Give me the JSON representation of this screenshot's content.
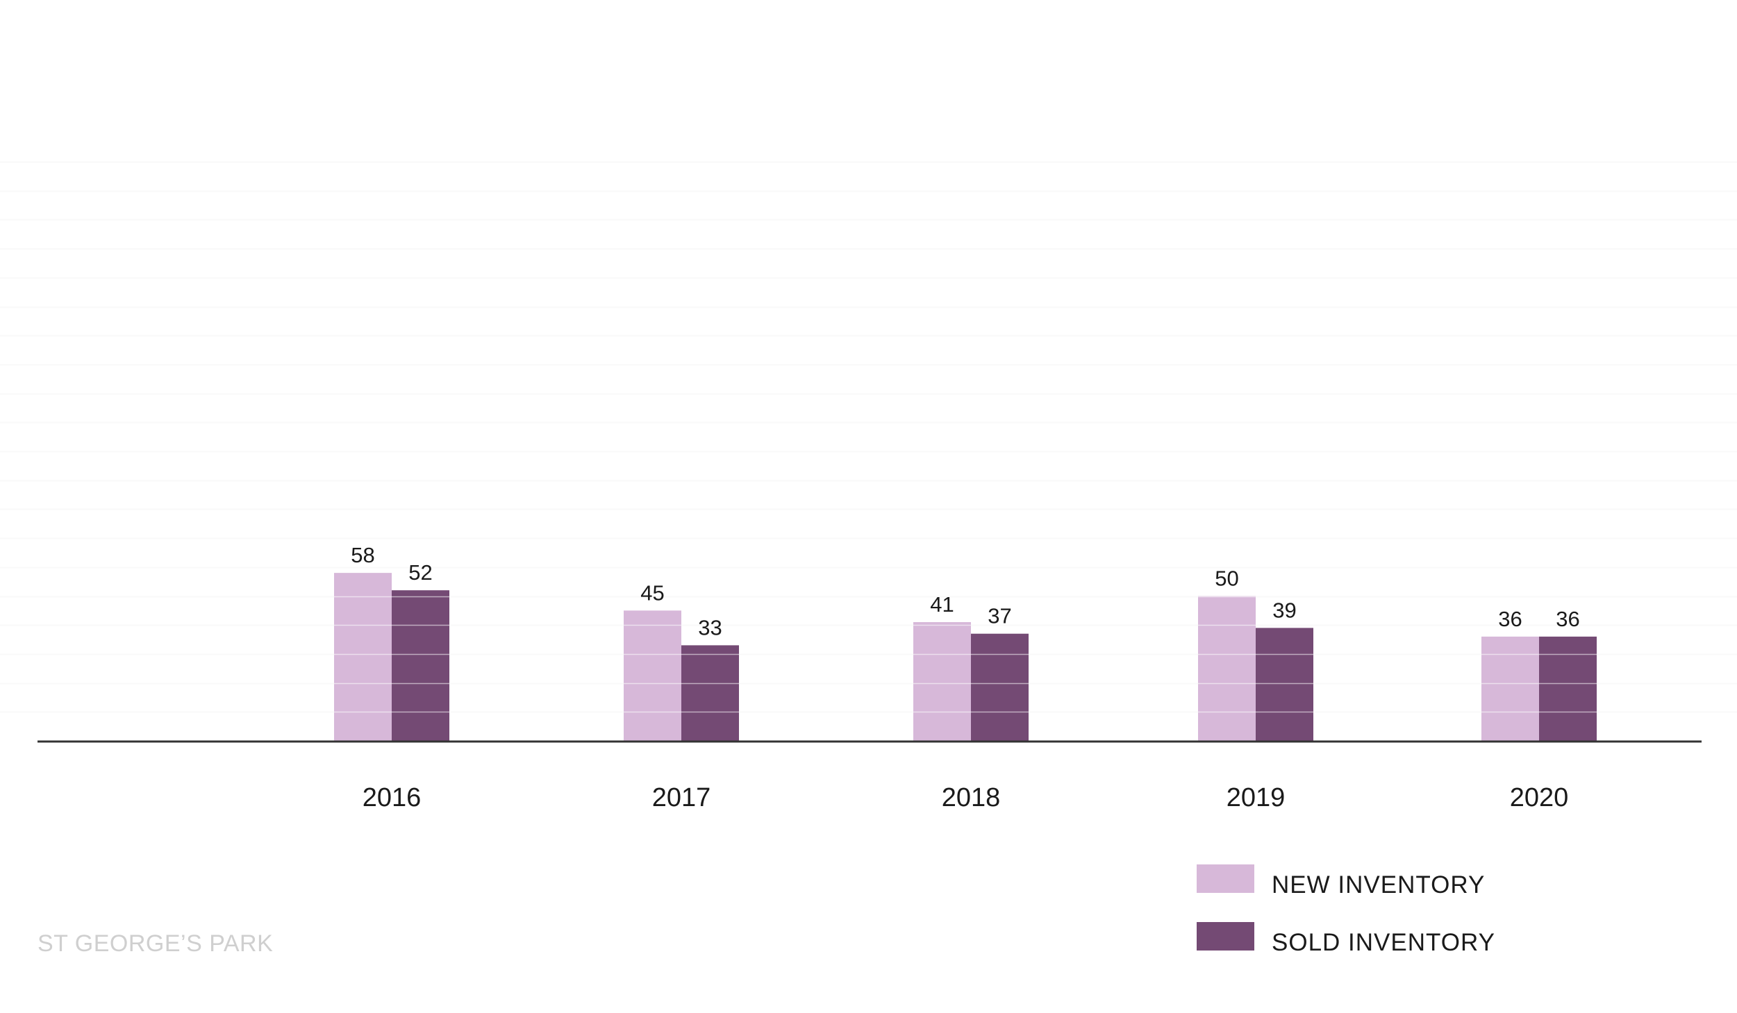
{
  "chart_data": {
    "type": "bar",
    "title": "",
    "xlabel": "",
    "ylabel": "",
    "categories": [
      "2016",
      "2017",
      "2018",
      "2019",
      "2020"
    ],
    "series": [
      {
        "name": "NEW INVENTORY",
        "values": [
          58,
          45,
          41,
          50,
          36
        ],
        "color": "#d7b8d9"
      },
      {
        "name": "SOLD INVENTORY",
        "values": [
          52,
          33,
          37,
          39,
          36
        ],
        "color": "#744a74"
      }
    ],
    "ylim": [
      0,
      200
    ],
    "grid": true,
    "legend": "bottom-right"
  },
  "footer": {
    "brand": "ST GEORGE’S PARK"
  },
  "colors": {
    "grid": "#f2f2f2",
    "axis": "#333333",
    "text": "#1a1a1a",
    "footer": "#cfcfcf"
  }
}
